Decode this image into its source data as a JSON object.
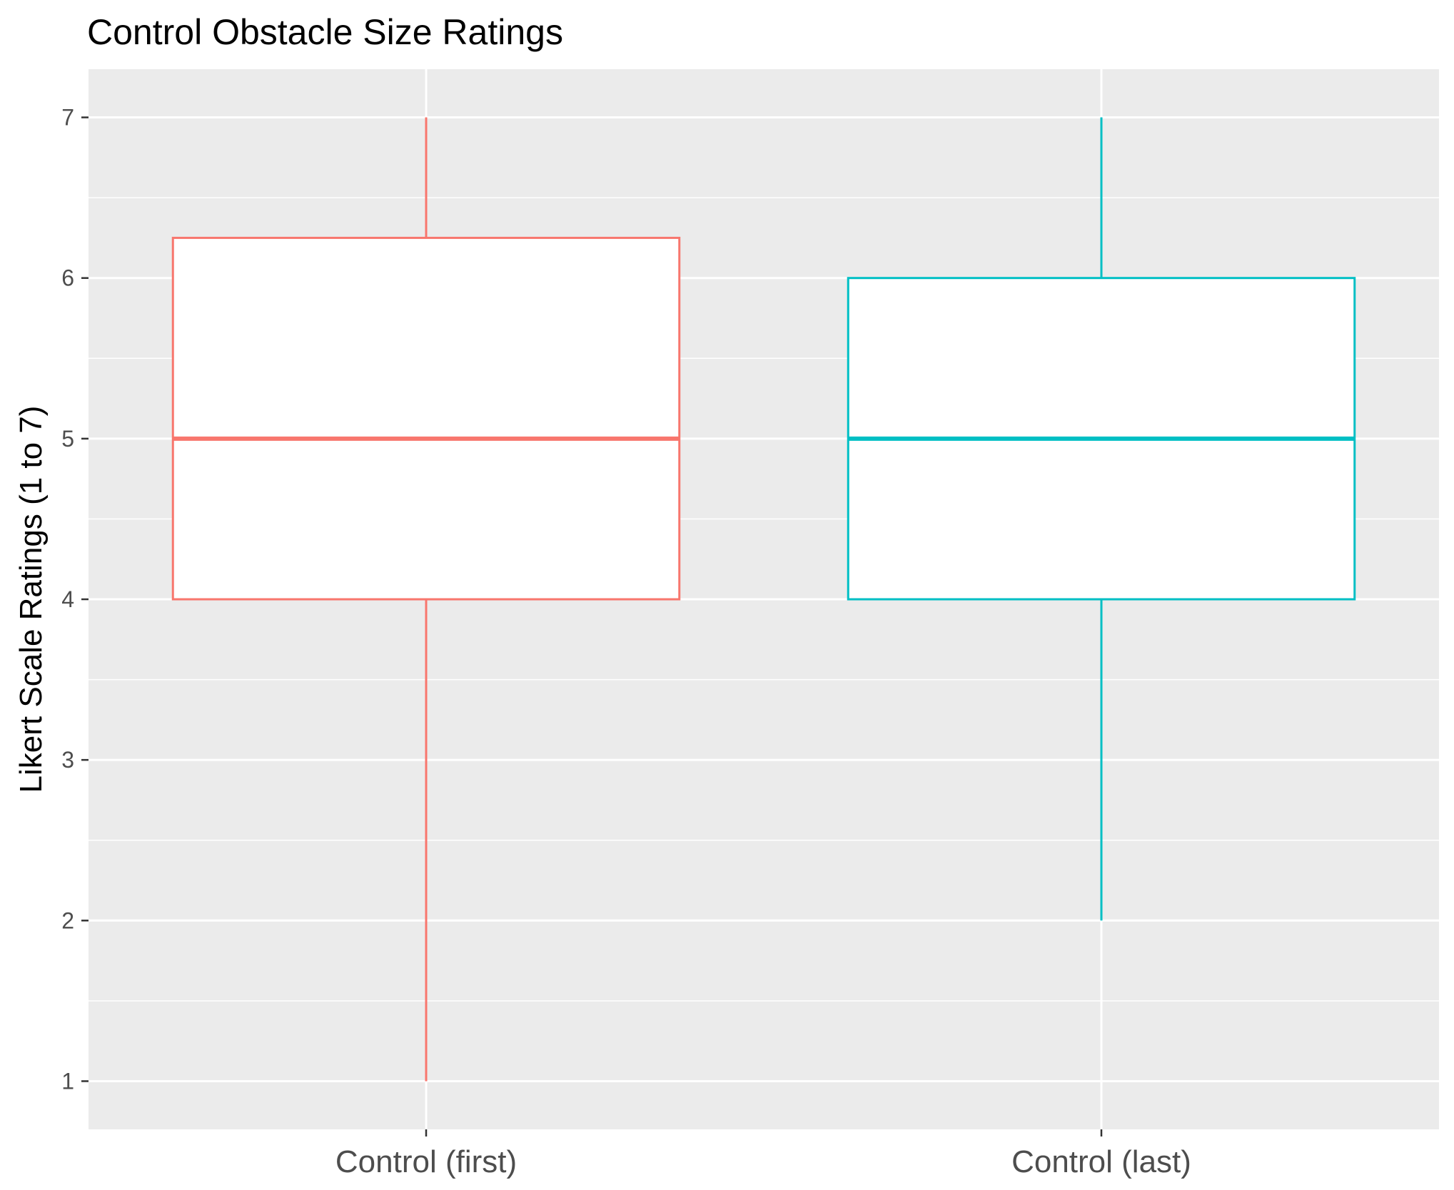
{
  "chart_data": {
    "type": "box",
    "title": "Control Obstacle Size Ratings",
    "xlabel": "",
    "ylabel": "Likert Scale Ratings (1 to 7)",
    "ylim": [
      0.7,
      7.3
    ],
    "yticks": [
      1,
      2,
      3,
      4,
      5,
      6,
      7
    ],
    "grid": true,
    "legend": "none",
    "categories": [
      "Control (first)",
      "Control (last)"
    ],
    "boxes": [
      {
        "category": "Control (first)",
        "min": 1,
        "q1": 4,
        "median": 5,
        "q3": 6.25,
        "max": 7,
        "color": "#F8766D"
      },
      {
        "category": "Control (last)",
        "min": 2,
        "q1": 4,
        "median": 5,
        "q3": 6,
        "max": 7,
        "color": "#00BFC4"
      }
    ],
    "panel_color": "#EBEBEB",
    "grid_color": "#FFFFFF"
  }
}
